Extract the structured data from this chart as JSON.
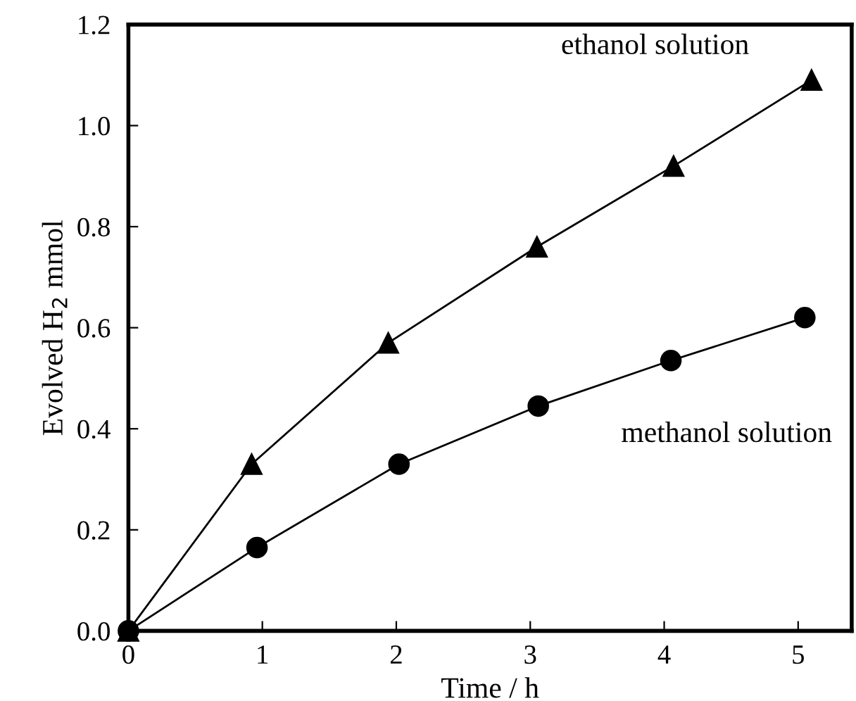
{
  "chart_data": {
    "type": "line",
    "xlabel": "Time / h",
    "ylabel": "Evolved H$_{2}$ mmol",
    "xlim": [
      0,
      5.4
    ],
    "ylim": [
      0,
      1.2
    ],
    "xticks": [
      0,
      1,
      2,
      3,
      4,
      5
    ],
    "yticks": [
      {
        "value": 0,
        "label": "0.0"
      },
      0.2,
      0.4,
      0.6,
      0.8,
      {
        "value": 1,
        "label": "1.0"
      },
      1.2
    ],
    "series": [
      {
        "name": "ethanol solution",
        "color": "#000000",
        "marker": "triangle",
        "x": [
          0,
          0.92,
          1.94,
          3.05,
          4.07,
          5.1
        ],
        "values": [
          0,
          0.33,
          0.57,
          0.76,
          0.92,
          1.09
        ]
      },
      {
        "name": "methanol solution",
        "color": "#000000",
        "marker": "circle",
        "x": [
          0,
          0.96,
          2.02,
          3.06,
          4.05,
          5.05
        ],
        "values": [
          0,
          0.165,
          0.33,
          0.445,
          0.535,
          0.62
        ]
      }
    ],
    "grid": false,
    "legend": false
  }
}
